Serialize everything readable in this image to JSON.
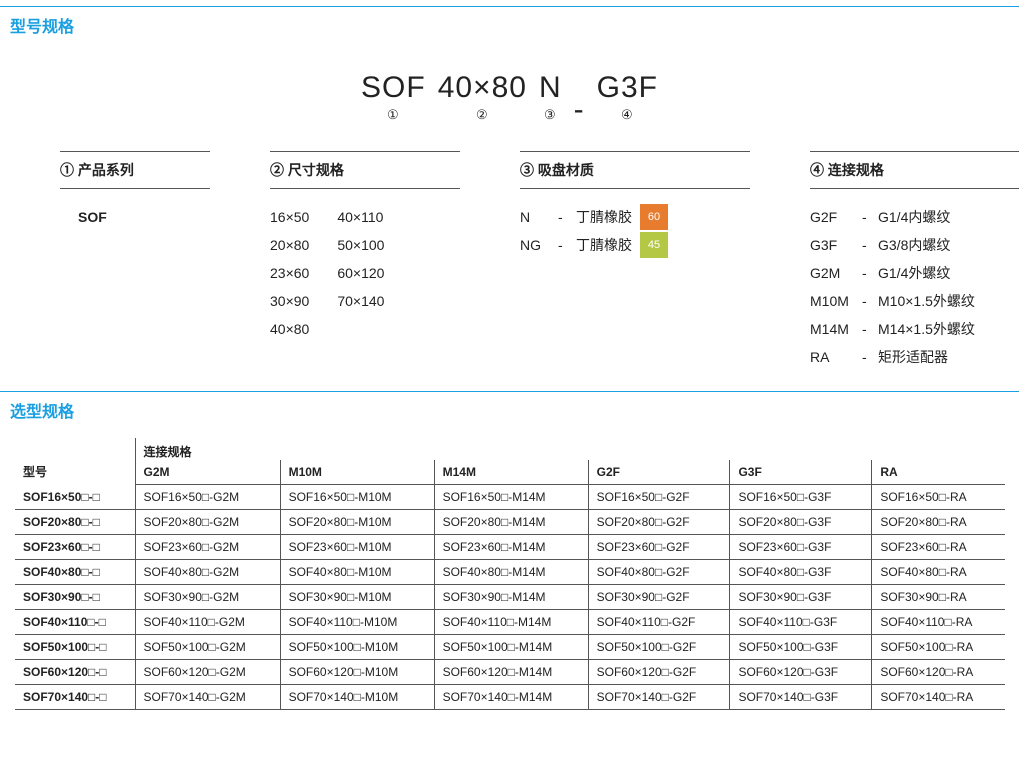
{
  "colors": {
    "accent": "#1a9fe0",
    "border": "#555555",
    "tag60": "#e77c2e",
    "tag45": "#b4c846",
    "text": "#222222"
  },
  "sections": {
    "spec_title": "型号规格",
    "select_title": "选型规格"
  },
  "model_example": {
    "parts": [
      {
        "text": "SOF",
        "num": "①"
      },
      {
        "text": "40×80",
        "num": "②"
      },
      {
        "text": "N",
        "num": "③"
      },
      {
        "text": "-",
        "num": ""
      },
      {
        "text": "G3F",
        "num": "④"
      }
    ]
  },
  "spec_cols": {
    "c1": {
      "head": "① 产品系列",
      "value": "SOF"
    },
    "c2": {
      "head": "② 尺寸规格",
      "left": [
        "16×50",
        "20×80",
        "23×60",
        "30×90",
        "40×80"
      ],
      "right": [
        "40×110",
        "50×100",
        "60×120",
        "70×140"
      ]
    },
    "c3": {
      "head": "③ 吸盘材质",
      "items": [
        {
          "code": "N",
          "label": "丁腈橡胶",
          "tag": "60",
          "tag_color": "#e77c2e"
        },
        {
          "code": "NG",
          "label": "丁腈橡胶",
          "tag": "45",
          "tag_color": "#b4c846"
        }
      ]
    },
    "c4": {
      "head": "④ 连接规格",
      "items": [
        {
          "code": "G2F",
          "label": "G1/4内螺纹"
        },
        {
          "code": "G3F",
          "label": "G3/8内螺纹"
        },
        {
          "code": "G2M",
          "label": "G1/4外螺纹"
        },
        {
          "code": "M10M",
          "label": "M10×1.5外螺纹"
        },
        {
          "code": "M14M",
          "label": "M14×1.5外螺纹"
        },
        {
          "code": "RA",
          "label": "矩形适配器"
        }
      ]
    }
  },
  "selection_table": {
    "header_model": "型号",
    "header_conn": "连接规格",
    "conn_cols": [
      "G2M",
      "M10M",
      "M14M",
      "G2F",
      "G3F",
      "RA"
    ],
    "rows": [
      {
        "model": "SOF16×50□-□",
        "cells": [
          "SOF16×50□-G2M",
          "SOF16×50□-M10M",
          "SOF16×50□-M14M",
          "SOF16×50□-G2F",
          "SOF16×50□-G3F",
          "SOF16×50□-RA"
        ]
      },
      {
        "model": "SOF20×80□-□",
        "cells": [
          "SOF20×80□-G2M",
          "SOF20×80□-M10M",
          "SOF20×80□-M14M",
          "SOF20×80□-G2F",
          "SOF20×80□-G3F",
          "SOF20×80□-RA"
        ]
      },
      {
        "model": "SOF23×60□-□",
        "cells": [
          "SOF23×60□-G2M",
          "SOF23×60□-M10M",
          "SOF23×60□-M14M",
          "SOF23×60□-G2F",
          "SOF23×60□-G3F",
          "SOF23×60□-RA"
        ]
      },
      {
        "model": "SOF40×80□-□",
        "cells": [
          "SOF40×80□-G2M",
          "SOF40×80□-M10M",
          "SOF40×80□-M14M",
          "SOF40×80□-G2F",
          "SOF40×80□-G3F",
          "SOF40×80□-RA"
        ]
      },
      {
        "model": "SOF30×90□-□",
        "cells": [
          "SOF30×90□-G2M",
          "SOF30×90□-M10M",
          "SOF30×90□-M14M",
          "SOF30×90□-G2F",
          "SOF30×90□-G3F",
          "SOF30×90□-RA"
        ]
      },
      {
        "model": "SOF40×110□-□",
        "cells": [
          "SOF40×110□-G2M",
          "SOF40×110□-M10M",
          "SOF40×110□-M14M",
          "SOF40×110□-G2F",
          "SOF40×110□-G3F",
          "SOF40×110□-RA"
        ]
      },
      {
        "model": "SOF50×100□-□",
        "cells": [
          "SOF50×100□-G2M",
          "SOF50×100□-M10M",
          "SOF50×100□-M14M",
          "SOF50×100□-G2F",
          "SOF50×100□-G3F",
          "SOF50×100□-RA"
        ]
      },
      {
        "model": "SOF60×120□-□",
        "cells": [
          "SOF60×120□-G2M",
          "SOF60×120□-M10M",
          "SOF60×120□-M14M",
          "SOF60×120□-G2F",
          "SOF60×120□-G3F",
          "SOF60×120□-RA"
        ]
      },
      {
        "model": "SOF70×140□-□",
        "cells": [
          "SOF70×140□-G2M",
          "SOF70×140□-M10M",
          "SOF70×140□-M14M",
          "SOF70×140□-G2F",
          "SOF70×140□-G3F",
          "SOF70×140□-RA"
        ]
      }
    ]
  }
}
